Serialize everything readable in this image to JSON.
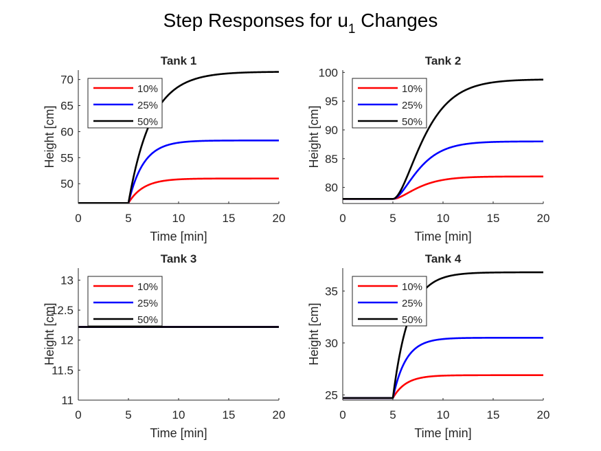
{
  "figure": {
    "title_main": "Step Responses for u",
    "title_sub": "1",
    "title_tail": " Changes"
  },
  "colors": {
    "10%": "#ff0000",
    "25%": "#0000ff",
    "50%": "#000000",
    "axis": "#262626"
  },
  "chart_data": [
    {
      "type": "line",
      "title": "Tank 1",
      "xlabel": "Time [min]",
      "ylabel": "Height [cm]",
      "xlim": [
        0,
        20
      ],
      "ylim": [
        46.2,
        71.8
      ],
      "xticks": [
        "0",
        "5",
        "10",
        "15",
        "20"
      ],
      "yticks": [
        "50",
        "55",
        "60",
        "65",
        "70"
      ],
      "ytick_values": [
        50,
        55,
        60,
        65,
        70
      ],
      "step_time": 5,
      "initial": 46.3,
      "legend_position": "top-left",
      "grid": false,
      "series": [
        {
          "name": "10%",
          "color": "#ff0000",
          "final": 51.0,
          "tau": 1.5,
          "order": 1
        },
        {
          "name": "25%",
          "color": "#0000ff",
          "final": 58.3,
          "tau": 1.5,
          "order": 1
        },
        {
          "name": "50%",
          "color": "#000000",
          "final": 71.5,
          "tau": 2.3,
          "order": 1
        }
      ]
    },
    {
      "type": "line",
      "title": "Tank 2",
      "xlabel": "Time [min]",
      "ylabel": "Height [cm]",
      "xlim": [
        0,
        20
      ],
      "ylim": [
        77.2,
        100.4
      ],
      "xticks": [
        "0",
        "5",
        "10",
        "15",
        "20"
      ],
      "yticks": [
        "80",
        "85",
        "90",
        "95",
        "100"
      ],
      "ytick_values": [
        80,
        85,
        90,
        95,
        100
      ],
      "step_time": 5,
      "initial": 78.0,
      "legend_position": "top-left",
      "grid": false,
      "series": [
        {
          "name": "10%",
          "color": "#ff0000",
          "final": 81.9,
          "tau": 1.5,
          "order": 2
        },
        {
          "name": "25%",
          "color": "#0000ff",
          "final": 88.0,
          "tau": 1.5,
          "order": 2
        },
        {
          "name": "50%",
          "color": "#000000",
          "final": 98.8,
          "tau": 1.8,
          "order": 2
        }
      ]
    },
    {
      "type": "line",
      "title": "Tank 3",
      "xlabel": "Time [min]",
      "ylabel": "Height [cm]",
      "xlim": [
        0,
        20
      ],
      "ylim": [
        11,
        13.2
      ],
      "xticks": [
        "0",
        "5",
        "10",
        "15",
        "20"
      ],
      "yticks": [
        "11",
        "11.5",
        "12",
        "12.5",
        "13"
      ],
      "ytick_values": [
        11,
        11.5,
        12,
        12.5,
        13
      ],
      "step_time": 5,
      "initial": 12.22,
      "legend_position": "top-left",
      "grid": false,
      "series": [
        {
          "name": "10%",
          "color": "#ff0000",
          "final": 12.22,
          "tau": 1.5,
          "order": 1
        },
        {
          "name": "25%",
          "color": "#0000ff",
          "final": 12.22,
          "tau": 1.5,
          "order": 1
        },
        {
          "name": "50%",
          "color": "#000000",
          "final": 12.22,
          "tau": 1.5,
          "order": 1
        }
      ]
    },
    {
      "type": "line",
      "title": "Tank 4",
      "xlabel": "Time [min]",
      "ylabel": "Height [cm]",
      "xlim": [
        0,
        20
      ],
      "ylim": [
        24.5,
        37.2
      ],
      "xticks": [
        "0",
        "5",
        "10",
        "15",
        "20"
      ],
      "yticks": [
        "25",
        "30",
        "35"
      ],
      "ytick_values": [
        25,
        30,
        35
      ],
      "step_time": 5,
      "initial": 24.7,
      "legend_position": "top-left",
      "grid": false,
      "series": [
        {
          "name": "10%",
          "color": "#ff0000",
          "final": 26.9,
          "tau": 1.3,
          "order": 1
        },
        {
          "name": "25%",
          "color": "#0000ff",
          "final": 30.5,
          "tau": 1.3,
          "order": 1
        },
        {
          "name": "50%",
          "color": "#000000",
          "final": 36.8,
          "tau": 1.6,
          "order": 1
        }
      ]
    }
  ]
}
